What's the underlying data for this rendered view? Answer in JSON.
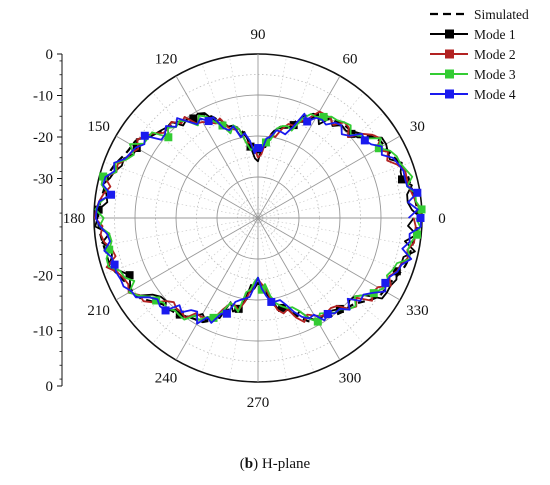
{
  "caption": {
    "label": "b",
    "text": "H-plane"
  },
  "chart_data": {
    "type": "polar",
    "radial_axis": {
      "ticks_upper": [
        "0",
        "-10",
        "-20",
        "-30"
      ],
      "ticks_lower": [
        "-20",
        "-10",
        "0"
      ],
      "range_db": [
        -40,
        0
      ],
      "rings_db": [
        -30,
        -20,
        -10,
        0
      ]
    },
    "angular_axis": {
      "unit": "deg",
      "labels": [
        "0",
        "30",
        "60",
        "90",
        "120",
        "150",
        "180",
        "210",
        "240",
        "270",
        "300",
        "330"
      ],
      "angles": [
        0,
        30,
        60,
        90,
        120,
        150,
        180,
        210,
        240,
        270,
        300,
        330
      ]
    },
    "pattern_db_vs_angle": {
      "angles": [
        0,
        15,
        30,
        45,
        60,
        75,
        90,
        105,
        120,
        135,
        150,
        165,
        180,
        195,
        210,
        225,
        240,
        255,
        270,
        285,
        300,
        315,
        330,
        345,
        360
      ],
      "values": [
        -1,
        -2,
        -4.5,
        -9,
        -11,
        -17,
        -24,
        -17,
        -11,
        -9,
        -4.5,
        -2,
        -1,
        -2,
        -4.5,
        -9,
        -11,
        -17,
        -24,
        -17,
        -11,
        -9,
        -4.5,
        -2,
        -1
      ]
    },
    "series": [
      {
        "name": "Simulated",
        "color": "#000000",
        "style": "dashed",
        "marker": "none",
        "seed": 0
      },
      {
        "name": "Mode 1",
        "color": "#000000",
        "style": "solid",
        "marker": "square",
        "seed": 11
      },
      {
        "name": "Mode 2",
        "color": "#b22222",
        "style": "solid",
        "marker": "square",
        "seed": 23
      },
      {
        "name": "Mode 3",
        "color": "#33cc33",
        "style": "solid",
        "marker": "square",
        "seed": 37
      },
      {
        "name": "Mode 4",
        "color": "#1a1aee",
        "style": "solid",
        "marker": "square",
        "seed": 53
      }
    ],
    "legend": "top-right",
    "grid": true
  }
}
